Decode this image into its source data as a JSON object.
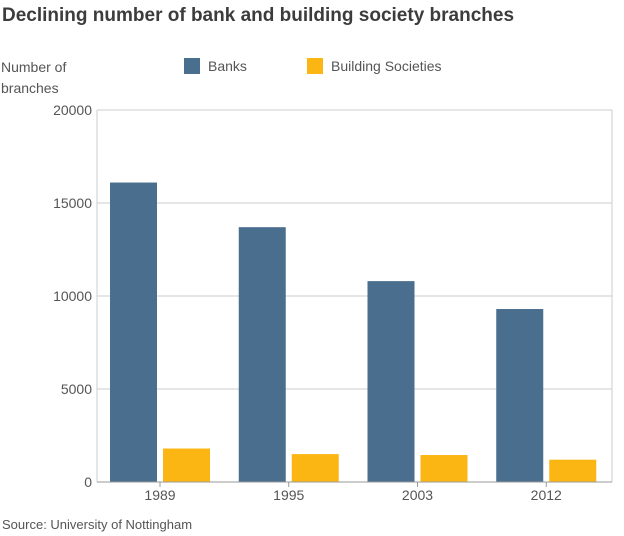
{
  "title": "Declining number of bank and building society branches",
  "source": "Source: University of Nottingham",
  "chart_data": {
    "type": "bar",
    "title": "Declining number of bank and building society branches",
    "xlabel": "",
    "ylabel": "Number of branches",
    "categories": [
      "1989",
      "1995",
      "2003",
      "2012"
    ],
    "series": [
      {
        "name": "Banks",
        "color": "#4a6e8e",
        "values": [
          16100,
          13700,
          10800,
          9300
        ]
      },
      {
        "name": "Building Societies",
        "color": "#fbb613",
        "values": [
          1800,
          1500,
          1450,
          1200
        ]
      }
    ],
    "ylim": [
      0,
      20000
    ],
    "yticks": [
      "0",
      "5000",
      "10000",
      "15000",
      "20000"
    ],
    "grid": true,
    "legend": "top"
  }
}
